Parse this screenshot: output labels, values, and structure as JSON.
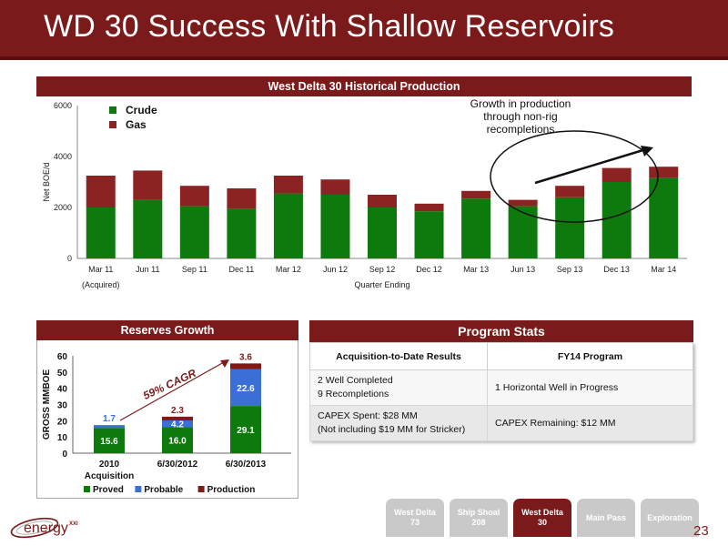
{
  "header": {
    "title": "WD 30 Success With Shallow Reservoirs"
  },
  "colors": {
    "brand": "#7b1a1a",
    "crude": "#0e7a0e",
    "gas": "#8b2323",
    "proved": "#0e7a0e",
    "probable": "#3a6fd8",
    "production": "#7b1a1a",
    "tab_inactive": "#c9c9c9"
  },
  "production_chart": {
    "banner": "West Delta 30 Historical Production",
    "acquired_note": "(Acquired)",
    "annotation": "Growth in production through non-rig recompletions",
    "annotation_lines": [
      "Growth in production",
      "through non-rig",
      "recompletions"
    ]
  },
  "reserves_chart": {
    "banner": "Reserves Growth",
    "cagr_label": "59% CAGR"
  },
  "program_stats": {
    "banner": "Program Stats",
    "col1_header": "Acquisition-to-Date Results",
    "col2_header": "FY14 Program",
    "row1_left_line1": "2 Well Completed",
    "row1_left_line2": "9 Recompletions",
    "row1_right": "1 Horizontal Well in Progress",
    "row2_left_line1": "CAPEX Spent: $28 MM",
    "row2_left_line2": "(Not including $19 MM for Stricker)",
    "row2_right": "CAPEX Remaining: $12 MM"
  },
  "footer": {
    "logo_text": "energy",
    "logo_suffix": "XXI",
    "page_number": "23",
    "tabs": [
      {
        "label_line1": "West Delta",
        "label_line2": "73",
        "active": false
      },
      {
        "label_line1": "Ship Shoal",
        "label_line2": "208",
        "active": false
      },
      {
        "label_line1": "West Delta",
        "label_line2": "30",
        "active": true
      },
      {
        "label_line1": "Main Pass",
        "label_line2": "",
        "active": false
      },
      {
        "label_line1": "Exploration",
        "label_line2": "",
        "active": false
      }
    ]
  },
  "chart_data": [
    {
      "type": "bar",
      "title": "West Delta 30 Historical Production",
      "xlabel": "Quarter Ending",
      "ylabel": "Net BOE/d",
      "ylim": [
        0,
        6000
      ],
      "yticks": [
        "0",
        "2000",
        "4000",
        "6000"
      ],
      "legend": "top-left",
      "stacked": true,
      "categories": [
        "Mar 11",
        "Jun 11",
        "Sep 11",
        "Dec 11",
        "Mar 12",
        "Jun 12",
        "Sep 12",
        "Dec 12",
        "Mar 13",
        "Jun 13",
        "Sep 13",
        "Dec 13",
        "Mar 14"
      ],
      "series": [
        {
          "name": "Crude",
          "values": [
            2000,
            2300,
            2050,
            1950,
            2550,
            2500,
            2000,
            1850,
            2350,
            2050,
            2400,
            3000,
            3150
          ]
        },
        {
          "name": "Gas",
          "values": [
            1250,
            1150,
            800,
            800,
            700,
            600,
            500,
            300,
            300,
            250,
            450,
            550,
            450
          ]
        }
      ]
    },
    {
      "type": "bar",
      "title": "Reserves Growth",
      "xlabel": "",
      "ylabel": "GROSS MMBOE",
      "ylim": [
        0,
        60
      ],
      "yticks": [
        "0",
        "10",
        "20",
        "30",
        "40",
        "50",
        "60"
      ],
      "legend": "bottom",
      "stacked": true,
      "categories": [
        "2010 Acquisition",
        "6/30/2012",
        "6/30/2013"
      ],
      "category_lines": [
        [
          "2010",
          "Acquisition"
        ],
        [
          "6/30/2012"
        ],
        [
          "6/30/2013"
        ]
      ],
      "series": [
        {
          "name": "Proved",
          "values": [
            15.6,
            16.0,
            29.1
          ],
          "labels": [
            "15.6",
            "16.0",
            "29.1"
          ]
        },
        {
          "name": "Probable",
          "values": [
            1.7,
            4.2,
            22.6
          ],
          "labels": [
            "1.7",
            "4.2",
            "22.6"
          ]
        },
        {
          "name": "Production",
          "values": [
            0,
            2.3,
            3.6
          ],
          "labels": [
            "",
            "2.3",
            "3.6"
          ]
        }
      ],
      "top_labels": [
        "1.7",
        "2.3",
        "3.6"
      ]
    }
  ]
}
